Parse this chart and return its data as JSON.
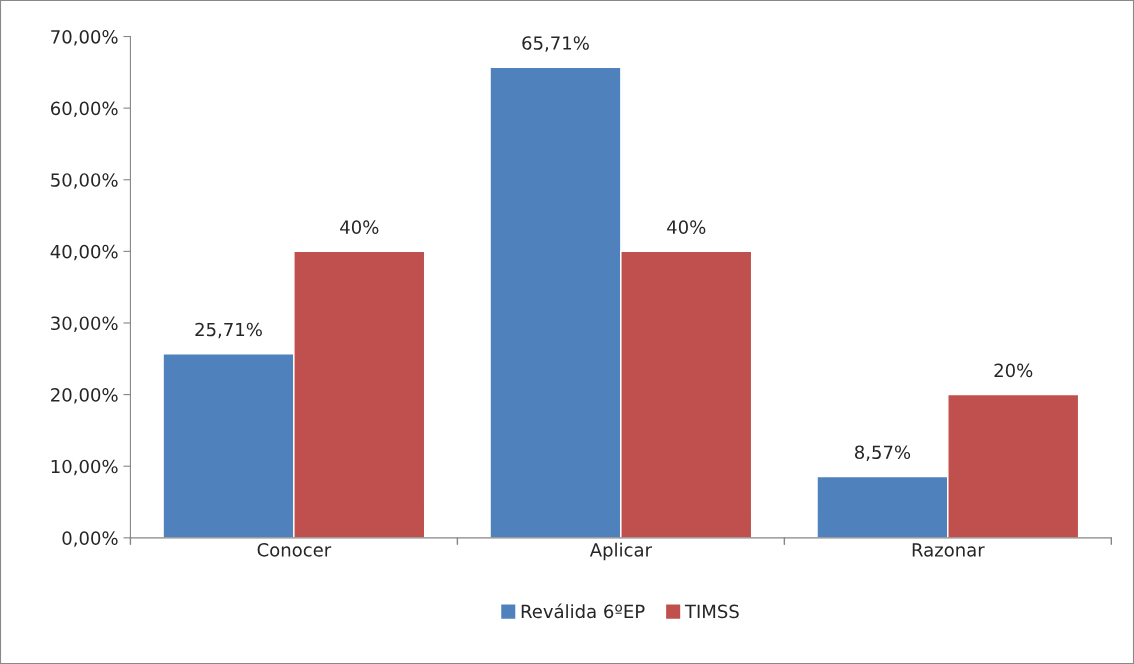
{
  "chart_data": {
    "type": "bar",
    "categories": [
      "Conocer",
      "Aplicar",
      "Razonar"
    ],
    "series": [
      {
        "name": "Reválida 6ºEP",
        "color": "#4f81bd",
        "values": [
          25.71,
          65.71,
          8.57
        ],
        "value_labels": [
          "25,71%",
          "65,71%",
          "8,57%"
        ]
      },
      {
        "name": "TIMSS",
        "color": "#c0504d",
        "values": [
          40,
          40,
          20
        ],
        "value_labels": [
          "40%",
          "40%",
          "20%"
        ]
      }
    ],
    "ylim": [
      0,
      70
    ],
    "yticks": [
      {
        "value": 0,
        "label": "0,00%"
      },
      {
        "value": 10,
        "label": "10,00%"
      },
      {
        "value": 20,
        "label": "20,00%"
      },
      {
        "value": 30,
        "label": "30,00%"
      },
      {
        "value": 40,
        "label": "40,00%"
      },
      {
        "value": 50,
        "label": "50,00%"
      },
      {
        "value": 60,
        "label": "60,00%"
      },
      {
        "value": 70,
        "label": "70,00%"
      }
    ],
    "grid": false,
    "legend": "bottom"
  }
}
